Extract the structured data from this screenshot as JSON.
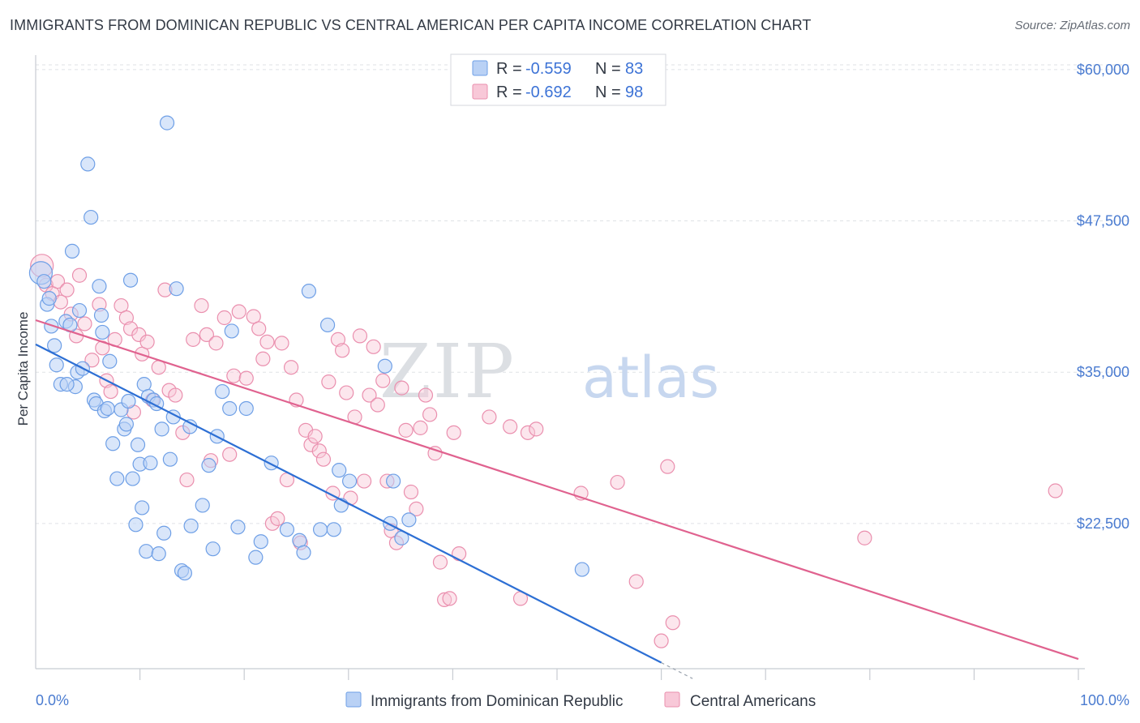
{
  "header": {
    "title": "IMMIGRANTS FROM DOMINICAN REPUBLIC VS CENTRAL AMERICAN PER CAPITA INCOME CORRELATION CHART",
    "source": "Source: ZipAtlas.com"
  },
  "watermark": {
    "zip": "ZIP",
    "atlas": "atlas"
  },
  "stats_legend": {
    "rows": [
      {
        "r_label": "R =",
        "r_value": "-0.559",
        "n_label": "N =",
        "n_value": "83",
        "color": "#9dbff0"
      },
      {
        "r_label": "R =",
        "r_value": "-0.692",
        "n_label": "N =",
        "n_value": "98",
        "color": "#f5b3c8"
      }
    ]
  },
  "chart_data": {
    "type": "scatter",
    "title": "IMMIGRANTS FROM DOMINICAN REPUBLIC VS CENTRAL AMERICAN PER CAPITA INCOME CORRELATION CHART",
    "xlabel": "",
    "ylabel": "Per Capita Income",
    "x_tick_labels": [
      "0.0%",
      "100.0%"
    ],
    "y_tick_labels": [
      "$22,500",
      "$35,000",
      "$47,500",
      "$60,000"
    ],
    "y_ticks": [
      22500,
      35000,
      47500,
      60000
    ],
    "xlim": [
      0,
      100
    ],
    "ylim": [
      10500,
      61200
    ],
    "grid": true,
    "legend_position": "bottom",
    "series": [
      {
        "name": "Immigrants from Dominican Republic",
        "color": "#6e9fe6",
        "fill": "#b9d1f5",
        "trend": {
          "x": [
            0,
            60
          ],
          "y": [
            37300,
            11000
          ]
        },
        "points": [
          [
            0.5,
            43200
          ],
          [
            0.8,
            42500
          ],
          [
            1.1,
            40600
          ],
          [
            1.3,
            41100
          ],
          [
            1.5,
            38800
          ],
          [
            1.8,
            37200
          ],
          [
            2.0,
            35600
          ],
          [
            2.4,
            34000
          ],
          [
            2.9,
            39200
          ],
          [
            3.3,
            38900
          ],
          [
            3.5,
            45000
          ],
          [
            3.8,
            33800
          ],
          [
            4.0,
            35000
          ],
          [
            4.2,
            40100
          ],
          [
            4.5,
            35300
          ],
          [
            5.0,
            52200
          ],
          [
            5.3,
            47800
          ],
          [
            5.6,
            32700
          ],
          [
            5.8,
            32400
          ],
          [
            6.1,
            42100
          ],
          [
            6.3,
            39700
          ],
          [
            6.4,
            38300
          ],
          [
            6.6,
            31800
          ],
          [
            6.9,
            32000
          ],
          [
            7.1,
            35900
          ],
          [
            7.4,
            29100
          ],
          [
            7.8,
            26200
          ],
          [
            8.2,
            31900
          ],
          [
            8.5,
            30300
          ],
          [
            8.7,
            30700
          ],
          [
            8.9,
            32600
          ],
          [
            9.1,
            42600
          ],
          [
            9.3,
            26200
          ],
          [
            9.6,
            22400
          ],
          [
            9.8,
            29000
          ],
          [
            10.0,
            27400
          ],
          [
            10.2,
            23800
          ],
          [
            10.4,
            34000
          ],
          [
            10.6,
            20200
          ],
          [
            10.8,
            33000
          ],
          [
            11.0,
            27500
          ],
          [
            11.3,
            32700
          ],
          [
            11.6,
            32400
          ],
          [
            11.8,
            20000
          ],
          [
            12.1,
            30300
          ],
          [
            12.3,
            21700
          ],
          [
            12.6,
            55600
          ],
          [
            12.9,
            27800
          ],
          [
            13.2,
            31300
          ],
          [
            13.5,
            41900
          ],
          [
            14.0,
            18600
          ],
          [
            14.3,
            18400
          ],
          [
            14.8,
            30500
          ],
          [
            14.9,
            22300
          ],
          [
            16.0,
            24000
          ],
          [
            16.6,
            27300
          ],
          [
            17.0,
            20400
          ],
          [
            17.4,
            29700
          ],
          [
            17.9,
            33400
          ],
          [
            18.6,
            32000
          ],
          [
            18.8,
            38400
          ],
          [
            19.4,
            22200
          ],
          [
            20.2,
            32000
          ],
          [
            21.1,
            19700
          ],
          [
            21.6,
            21000
          ],
          [
            22.6,
            27500
          ],
          [
            24.1,
            22000
          ],
          [
            25.3,
            21100
          ],
          [
            25.7,
            20100
          ],
          [
            26.2,
            41700
          ],
          [
            27.3,
            22000
          ],
          [
            28.0,
            38900
          ],
          [
            28.6,
            22000
          ],
          [
            29.1,
            26900
          ],
          [
            29.3,
            24000
          ],
          [
            30.1,
            26000
          ],
          [
            33.5,
            35500
          ],
          [
            34.0,
            22500
          ],
          [
            34.3,
            26000
          ],
          [
            35.1,
            21300
          ],
          [
            35.8,
            22800
          ],
          [
            52.4,
            18700
          ],
          [
            3.0,
            34000
          ]
        ]
      },
      {
        "name": "Central Americans",
        "color": "#ea8fae",
        "fill": "#f8c8d8",
        "trend": {
          "x": [
            0,
            100
          ],
          "y": [
            39300,
            11300
          ]
        },
        "points": [
          [
            0.6,
            43800
          ],
          [
            1.0,
            42200
          ],
          [
            1.6,
            41500
          ],
          [
            2.1,
            42500
          ],
          [
            2.4,
            40800
          ],
          [
            3.0,
            41800
          ],
          [
            3.4,
            39800
          ],
          [
            3.9,
            38000
          ],
          [
            4.2,
            43000
          ],
          [
            4.7,
            39000
          ],
          [
            5.4,
            36000
          ],
          [
            6.1,
            40600
          ],
          [
            6.4,
            37000
          ],
          [
            6.8,
            34300
          ],
          [
            7.2,
            33400
          ],
          [
            7.6,
            37700
          ],
          [
            8.2,
            40500
          ],
          [
            8.7,
            39500
          ],
          [
            9.1,
            38600
          ],
          [
            9.4,
            31700
          ],
          [
            9.9,
            38100
          ],
          [
            10.2,
            36500
          ],
          [
            10.7,
            37500
          ],
          [
            11.2,
            32700
          ],
          [
            11.8,
            35400
          ],
          [
            12.4,
            41800
          ],
          [
            12.8,
            33500
          ],
          [
            13.4,
            33100
          ],
          [
            14.1,
            30000
          ],
          [
            14.5,
            26100
          ],
          [
            15.1,
            37700
          ],
          [
            15.9,
            40500
          ],
          [
            16.4,
            38100
          ],
          [
            16.8,
            27700
          ],
          [
            17.3,
            37400
          ],
          [
            18.1,
            39500
          ],
          [
            18.6,
            28200
          ],
          [
            19.0,
            34700
          ],
          [
            19.5,
            40000
          ],
          [
            20.2,
            34500
          ],
          [
            20.9,
            39600
          ],
          [
            21.4,
            38600
          ],
          [
            21.8,
            36100
          ],
          [
            22.2,
            37500
          ],
          [
            22.7,
            22500
          ],
          [
            23.2,
            22900
          ],
          [
            23.6,
            37400
          ],
          [
            24.1,
            26100
          ],
          [
            24.5,
            35400
          ],
          [
            25.0,
            32700
          ],
          [
            25.4,
            20900
          ],
          [
            25.9,
            30200
          ],
          [
            26.4,
            29000
          ],
          [
            26.8,
            29700
          ],
          [
            27.2,
            28500
          ],
          [
            27.6,
            27800
          ],
          [
            28.1,
            34200
          ],
          [
            28.5,
            25000
          ],
          [
            29.0,
            37700
          ],
          [
            29.4,
            36800
          ],
          [
            29.8,
            33300
          ],
          [
            30.2,
            24600
          ],
          [
            30.6,
            31300
          ],
          [
            31.1,
            38000
          ],
          [
            31.5,
            26000
          ],
          [
            32.0,
            33100
          ],
          [
            32.4,
            37100
          ],
          [
            32.8,
            32300
          ],
          [
            33.3,
            34300
          ],
          [
            33.7,
            26000
          ],
          [
            34.1,
            21900
          ],
          [
            34.6,
            20900
          ],
          [
            35.1,
            33700
          ],
          [
            35.5,
            30200
          ],
          [
            36.0,
            25100
          ],
          [
            36.5,
            23700
          ],
          [
            36.9,
            30400
          ],
          [
            37.4,
            33100
          ],
          [
            37.8,
            31500
          ],
          [
            38.3,
            28300
          ],
          [
            38.8,
            19300
          ],
          [
            39.2,
            16200
          ],
          [
            39.7,
            16300
          ],
          [
            40.1,
            30000
          ],
          [
            40.6,
            20000
          ],
          [
            43.5,
            31300
          ],
          [
            45.5,
            30500
          ],
          [
            46.5,
            16300
          ],
          [
            47.2,
            30000
          ],
          [
            48.0,
            30300
          ],
          [
            52.3,
            25000
          ],
          [
            55.8,
            25900
          ],
          [
            57.6,
            17700
          ],
          [
            60.0,
            12800
          ],
          [
            60.6,
            27200
          ],
          [
            61.1,
            14300
          ],
          [
            79.5,
            21300
          ],
          [
            97.8,
            25200
          ]
        ]
      }
    ]
  }
}
